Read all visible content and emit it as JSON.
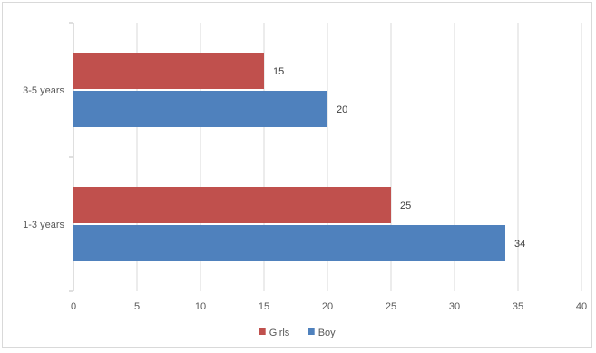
{
  "chart_data": {
    "type": "bar",
    "orientation": "horizontal",
    "categories": [
      "3-5 years",
      "1-3 years"
    ],
    "series": [
      {
        "name": "Girls",
        "color": "#c0504d",
        "values": [
          15,
          25
        ]
      },
      {
        "name": "Boy",
        "color": "#4f81bd",
        "values": [
          20,
          34
        ]
      }
    ],
    "xlim": [
      0,
      40
    ],
    "xticks": [
      0,
      5,
      10,
      15,
      20,
      25,
      30,
      35,
      40
    ],
    "data_labels": true,
    "grid": true,
    "legend_position": "bottom",
    "title": "",
    "xlabel": "",
    "ylabel": ""
  }
}
